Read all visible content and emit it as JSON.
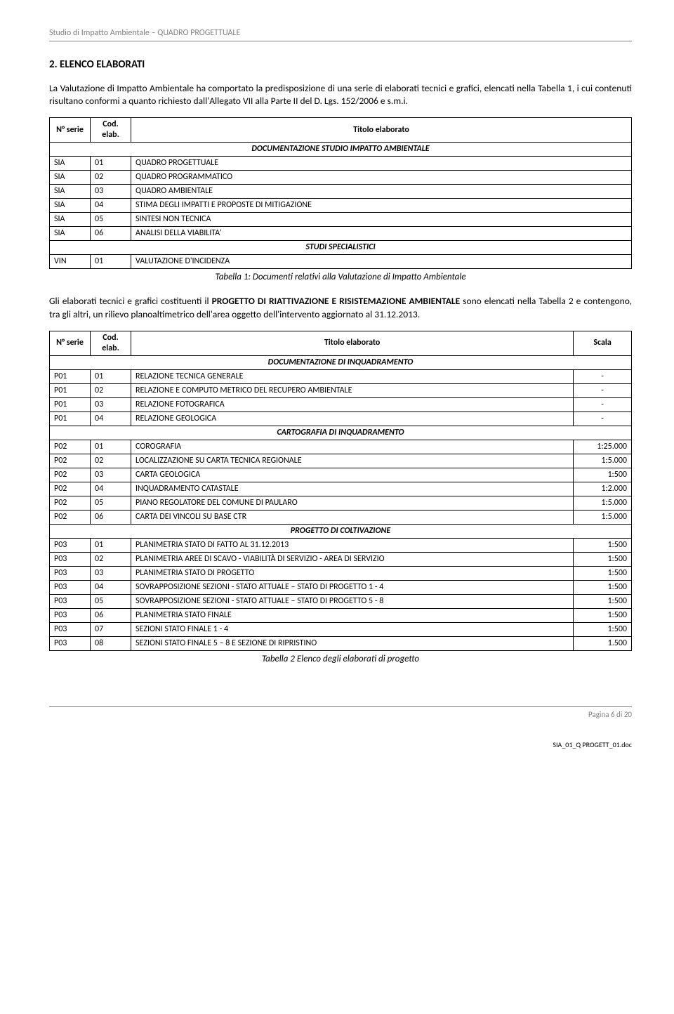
{
  "header": "Studio di Impatto Ambientale – QUADRO PROGETTUALE",
  "section_title": "2.   ELENCO ELABORATI",
  "para1": "La Valutazione di Impatto Ambientale ha comportato la predisposizione di una serie di elaborati tecnici e grafici, elencati nella Tabella 1, i cui contenuti risultano conformi a quanto richiesto dall'Allegato VII alla Parte II del D. Lgs. 152/2006 e s.m.i.",
  "table1": {
    "head": [
      "N° serie",
      "Cod. elab.",
      "Titolo elaborato"
    ],
    "sect1": "DOCUMENTAZIONE STUDIO IMPATTO AMBIENTALE",
    "rows1": [
      [
        "SIA",
        "01",
        "QUADRO PROGETTUALE"
      ],
      [
        "SIA",
        "02",
        "QUADRO PROGRAMMATICO"
      ],
      [
        "SIA",
        "03",
        "QUADRO AMBIENTALE"
      ],
      [
        "SIA",
        "04",
        "STIMA DEGLI IMPATTI E PROPOSTE DI MITIGAZIONE"
      ],
      [
        "SIA",
        "05",
        "SINTESI NON TECNICA"
      ],
      [
        "SIA",
        "06",
        "ANALISI DELLA VIABILITA'"
      ]
    ],
    "sect2": "STUDI SPECIALISTICI",
    "rows2": [
      [
        "VIN",
        "01",
        "VALUTAZIONE D'INCIDENZA"
      ]
    ],
    "caption": "Tabella 1: Documenti relativi alla Valutazione di Impatto Ambientale"
  },
  "para2_prefix": "Gli elaborati tecnici e grafici costituenti il ",
  "para2_bold": "PROGETTO DI RIATTIVAZIONE E RISISTEMAZIONE AMBIENTALE",
  "para2_suffix": " sono elencati nella Tabella 2 e contengono, tra gli altri, un rilievo planoaltimetrico dell'area oggetto dell'intervento aggiornato al 31.12.2013.",
  "table2": {
    "head": [
      "N° serie",
      "Cod. elab.",
      "Titolo elaborato",
      "Scala"
    ],
    "groups": [
      {
        "sect": "DOCUMENTAZIONE DI INQUADRAMENTO",
        "rows": [
          [
            "P01",
            "01",
            "RELAZIONE TECNICA GENERALE",
            "-"
          ],
          [
            "P01",
            "02",
            "RELAZIONE E COMPUTO METRICO DEL RECUPERO AMBIENTALE",
            "-"
          ],
          [
            "P01",
            "03",
            "RELAZIONE FOTOGRAFICA",
            "-"
          ],
          [
            "P01",
            "04",
            "RELAZIONE GEOLOGICA",
            "-"
          ]
        ]
      },
      {
        "sect": "CARTOGRAFIA DI INQUADRAMENTO",
        "rows": [
          [
            "P02",
            "01",
            "COROGRAFIA",
            "1:25.000"
          ],
          [
            "P02",
            "02",
            "LOCALIZZAZIONE SU CARTA TECNICA REGIONALE",
            "1:5.000"
          ],
          [
            "P02",
            "03",
            "CARTA GEOLOGICA",
            "1:500"
          ],
          [
            "P02",
            "04",
            "INQUADRAMENTO CATASTALE",
            "1:2.000"
          ],
          [
            "P02",
            "05",
            "PIANO REGOLATORE DEL COMUNE DI PAULARO",
            "1:5.000"
          ],
          [
            "P02",
            "06",
            "CARTA DEI VINCOLI SU BASE CTR",
            "1:5.000"
          ]
        ]
      },
      {
        "sect": "PROGETTO DI COLTIVAZIONE",
        "rows": [
          [
            "P03",
            "01",
            "PLANIMETRIA STATO DI FATTO AL 31.12.2013",
            "1:500"
          ],
          [
            "P03",
            "02",
            "PLANIMETRIA AREE DI SCAVO - VIABILITÀ DI SERVIZIO - AREA DI SERVIZIO",
            "1:500"
          ],
          [
            "P03",
            "03",
            "PLANIMETRIA  STATO DI PROGETTO",
            "1:500"
          ],
          [
            "P03",
            "04",
            "SOVRAPPOSIZIONE SEZIONI - STATO ATTUALE – STATO DI PROGETTO 1 - 4",
            "1:500"
          ],
          [
            "P03",
            "05",
            "SOVRAPPOSIZIONE SEZIONI - STATO ATTUALE – STATO DI PROGETTO 5 - 8",
            "1:500"
          ],
          [
            "P03",
            "06",
            "PLANIMETRIA STATO FINALE",
            "1:500"
          ],
          [
            "P03",
            "07",
            "SEZIONI STATO FINALE 1 - 4",
            "1:500"
          ],
          [
            "P03",
            "08",
            "SEZIONI STATO FINALE 5 – 8 E SEZIONE DI RIPRISTINO",
            "1.500"
          ]
        ]
      }
    ],
    "caption": "Tabella 2 Elenco degli elaborati di progetto"
  },
  "footer_page": "Pagina 6 di 20",
  "doc_code": "SIA_01_Q PROGETT_01.doc"
}
